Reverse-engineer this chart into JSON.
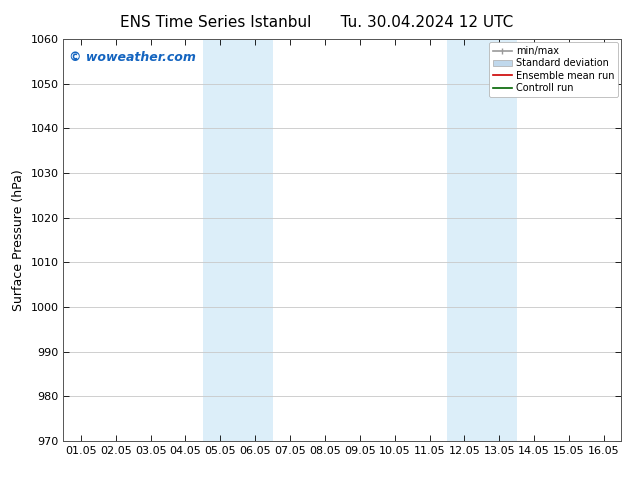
{
  "title_left": "ENS Time Series Istanbul",
  "title_right": "Tu. 30.04.2024 12 UTC",
  "ylabel": "Surface Pressure (hPa)",
  "ylim": [
    970,
    1060
  ],
  "yticks": [
    970,
    980,
    990,
    1000,
    1010,
    1020,
    1030,
    1040,
    1050,
    1060
  ],
  "xtick_labels": [
    "01.05",
    "02.05",
    "03.05",
    "04.05",
    "05.05",
    "06.05",
    "07.05",
    "08.05",
    "09.05",
    "10.05",
    "11.05",
    "12.05",
    "13.05",
    "14.05",
    "15.05",
    "16.05"
  ],
  "xtick_positions": [
    0,
    1,
    2,
    3,
    4,
    5,
    6,
    7,
    8,
    9,
    10,
    11,
    12,
    13,
    14,
    15
  ],
  "xlim": [
    -0.5,
    15.5
  ],
  "shaded_regions": [
    {
      "xstart": 3.5,
      "xend": 5.5,
      "color": "#dceef9"
    },
    {
      "xstart": 10.5,
      "xend": 12.5,
      "color": "#dceef9"
    }
  ],
  "background_color": "#ffffff",
  "plot_bg_color": "#ffffff",
  "grid_color": "#c8c8c8",
  "watermark_text": "© woweather.com",
  "watermark_color": "#1565c0",
  "legend_items": [
    {
      "label": "min/max",
      "color": "#999999",
      "lw": 1.2,
      "style": "solid"
    },
    {
      "label": "Standard deviation",
      "color": "#c0d8ec",
      "lw": 6,
      "style": "solid"
    },
    {
      "label": "Ensemble mean run",
      "color": "#cc0000",
      "lw": 1.2,
      "style": "solid"
    },
    {
      "label": "Controll run",
      "color": "#006400",
      "lw": 1.2,
      "style": "solid"
    }
  ],
  "title_fontsize": 11,
  "axis_label_fontsize": 9,
  "tick_fontsize": 8,
  "legend_fontsize": 7,
  "watermark_fontsize": 9
}
